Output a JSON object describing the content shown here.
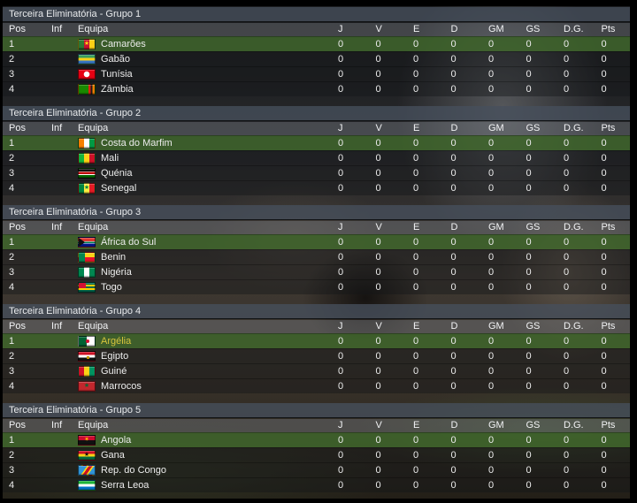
{
  "columns": {
    "pos": "Pos",
    "inf": "Inf",
    "equipa": "Equipa",
    "stats": [
      "J",
      "V",
      "E",
      "D",
      "GM",
      "GS",
      "D.G.",
      "Pts"
    ]
  },
  "groups": [
    {
      "title": "Terceira Eliminatória - Grupo 1",
      "rows": [
        {
          "pos": "1",
          "team": "Camarões",
          "flag": "camaroes",
          "highlighted": true,
          "user_team": false,
          "stats": [
            "0",
            "0",
            "0",
            "0",
            "0",
            "0",
            "0",
            "0"
          ]
        },
        {
          "pos": "2",
          "team": "Gabão",
          "flag": "gabao",
          "highlighted": false,
          "user_team": false,
          "stats": [
            "0",
            "0",
            "0",
            "0",
            "0",
            "0",
            "0",
            "0"
          ]
        },
        {
          "pos": "3",
          "team": "Tunísia",
          "flag": "tunisia",
          "highlighted": false,
          "user_team": false,
          "stats": [
            "0",
            "0",
            "0",
            "0",
            "0",
            "0",
            "0",
            "0"
          ]
        },
        {
          "pos": "4",
          "team": "Zâmbia",
          "flag": "zambia",
          "highlighted": false,
          "user_team": false,
          "stats": [
            "0",
            "0",
            "0",
            "0",
            "0",
            "0",
            "0",
            "0"
          ]
        }
      ]
    },
    {
      "title": "Terceira Eliminatória - Grupo 2",
      "rows": [
        {
          "pos": "1",
          "team": "Costa do Marfim",
          "flag": "costa-do-marfim",
          "highlighted": true,
          "user_team": false,
          "stats": [
            "0",
            "0",
            "0",
            "0",
            "0",
            "0",
            "0",
            "0"
          ]
        },
        {
          "pos": "2",
          "team": "Mali",
          "flag": "mali",
          "highlighted": false,
          "user_team": false,
          "stats": [
            "0",
            "0",
            "0",
            "0",
            "0",
            "0",
            "0",
            "0"
          ]
        },
        {
          "pos": "3",
          "team": "Quénia",
          "flag": "quenia",
          "highlighted": false,
          "user_team": false,
          "stats": [
            "0",
            "0",
            "0",
            "0",
            "0",
            "0",
            "0",
            "0"
          ]
        },
        {
          "pos": "4",
          "team": "Senegal",
          "flag": "senegal",
          "highlighted": false,
          "user_team": false,
          "stats": [
            "0",
            "0",
            "0",
            "0",
            "0",
            "0",
            "0",
            "0"
          ]
        }
      ]
    },
    {
      "title": "Terceira Eliminatória - Grupo 3",
      "rows": [
        {
          "pos": "1",
          "team": "África do Sul",
          "flag": "africa-do-sul",
          "highlighted": true,
          "user_team": false,
          "stats": [
            "0",
            "0",
            "0",
            "0",
            "0",
            "0",
            "0",
            "0"
          ]
        },
        {
          "pos": "2",
          "team": "Benin",
          "flag": "benin",
          "highlighted": false,
          "user_team": false,
          "stats": [
            "0",
            "0",
            "0",
            "0",
            "0",
            "0",
            "0",
            "0"
          ]
        },
        {
          "pos": "3",
          "team": "Nigéria",
          "flag": "nigeria",
          "highlighted": false,
          "user_team": false,
          "stats": [
            "0",
            "0",
            "0",
            "0",
            "0",
            "0",
            "0",
            "0"
          ]
        },
        {
          "pos": "4",
          "team": "Togo",
          "flag": "togo",
          "highlighted": false,
          "user_team": false,
          "stats": [
            "0",
            "0",
            "0",
            "0",
            "0",
            "0",
            "0",
            "0"
          ]
        }
      ]
    },
    {
      "title": "Terceira Eliminatória - Grupo 4",
      "rows": [
        {
          "pos": "1",
          "team": "Argélia",
          "flag": "argelia",
          "highlighted": true,
          "user_team": true,
          "stats": [
            "0",
            "0",
            "0",
            "0",
            "0",
            "0",
            "0",
            "0"
          ]
        },
        {
          "pos": "2",
          "team": "Egipto",
          "flag": "egipto",
          "highlighted": false,
          "user_team": false,
          "stats": [
            "0",
            "0",
            "0",
            "0",
            "0",
            "0",
            "0",
            "0"
          ]
        },
        {
          "pos": "3",
          "team": "Guiné",
          "flag": "guine",
          "highlighted": false,
          "user_team": false,
          "stats": [
            "0",
            "0",
            "0",
            "0",
            "0",
            "0",
            "0",
            "0"
          ]
        },
        {
          "pos": "4",
          "team": "Marrocos",
          "flag": "marrocos",
          "highlighted": false,
          "user_team": false,
          "stats": [
            "0",
            "0",
            "0",
            "0",
            "0",
            "0",
            "0",
            "0"
          ]
        }
      ]
    },
    {
      "title": "Terceira Eliminatória - Grupo 5",
      "rows": [
        {
          "pos": "1",
          "team": "Angola",
          "flag": "angola",
          "highlighted": true,
          "user_team": false,
          "stats": [
            "0",
            "0",
            "0",
            "0",
            "0",
            "0",
            "0",
            "0"
          ]
        },
        {
          "pos": "2",
          "team": "Gana",
          "flag": "gana",
          "highlighted": false,
          "user_team": false,
          "stats": [
            "0",
            "0",
            "0",
            "0",
            "0",
            "0",
            "0",
            "0"
          ]
        },
        {
          "pos": "3",
          "team": "Rep. do Congo",
          "flag": "rep-do-congo",
          "highlighted": false,
          "user_team": false,
          "stats": [
            "0",
            "0",
            "0",
            "0",
            "0",
            "0",
            "0",
            "0"
          ]
        },
        {
          "pos": "4",
          "team": "Serra Leoa",
          "flag": "serra-leoa",
          "highlighted": false,
          "user_team": false,
          "stats": [
            "0",
            "0",
            "0",
            "0",
            "0",
            "0",
            "0",
            "0"
          ]
        }
      ]
    }
  ],
  "colors": {
    "highlight_row": "rgba(64,102,44,0.85)",
    "user_team_text": "#d8c53c",
    "title_bar": "rgba(70,80,92,0.78)",
    "header_row": "rgba(128,133,141,0.38)"
  }
}
